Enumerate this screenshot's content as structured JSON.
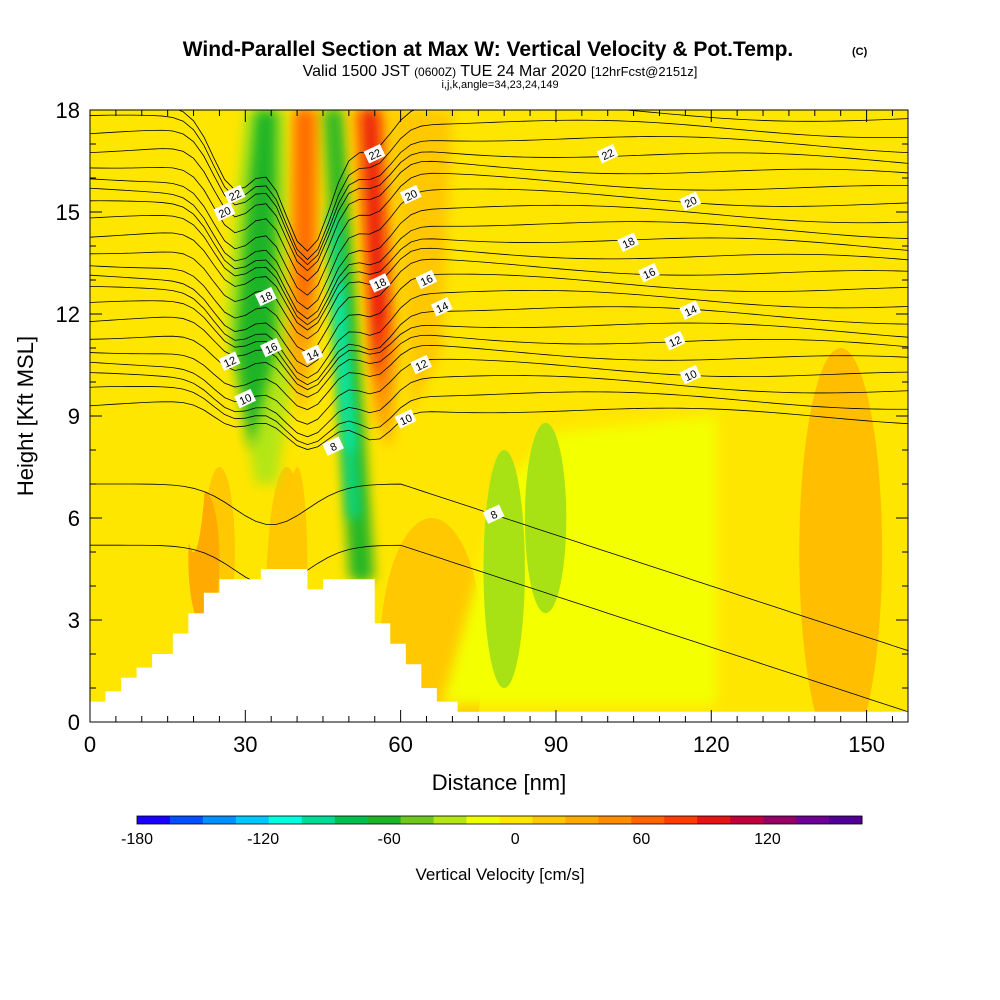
{
  "title": "Wind-Parallel Section at Max W: Vertical Velocity & Pot.Temp.",
  "title_mark": "(C)",
  "subtitle": {
    "valid_prefix": "Valid 1500 JST",
    "valid_utc": "(0600Z)",
    "valid_date": "TUE 24 Mar 2020",
    "forecast": "[12hrFcst@2151z]"
  },
  "indices": "i,j,k,angle=34,23,24,149",
  "chart_data": {
    "type": "heatmap",
    "xlabel": "Distance [nm]",
    "ylabel": "Height [Kft MSL]",
    "xlim": [
      0,
      158
    ],
    "ylim": [
      0,
      18
    ],
    "x_ticks": [
      0,
      30,
      60,
      90,
      120,
      150
    ],
    "y_ticks": [
      0,
      3,
      6,
      9,
      12,
      15,
      18
    ],
    "colorbar": {
      "label": "Vertical Velocity [cm/s]",
      "range": [
        -180,
        150
      ],
      "step": 15,
      "tick_values": [
        -180,
        -120,
        -60,
        0,
        60,
        120
      ],
      "colors": [
        "#1a00ff",
        "#0050ff",
        "#0090ff",
        "#00c8ff",
        "#00ffe0",
        "#00dc96",
        "#00c050",
        "#1eb428",
        "#6ec81e",
        "#b4e614",
        "#f0ff00",
        "#ffe600",
        "#ffc800",
        "#ffaa00",
        "#ff8c00",
        "#ff6400",
        "#ff3c00",
        "#e61414",
        "#c0003c",
        "#960064",
        "#6e0096",
        "#500096"
      ]
    },
    "theta_contour_labels": [
      {
        "value": 22,
        "x": 28,
        "y": 15.5
      },
      {
        "value": 20,
        "x": 26,
        "y": 15.0
      },
      {
        "value": 18,
        "x": 34,
        "y": 12.5
      },
      {
        "value": 16,
        "x": 35,
        "y": 11.0
      },
      {
        "value": 14,
        "x": 43,
        "y": 10.8
      },
      {
        "value": 12,
        "x": 27,
        "y": 10.6
      },
      {
        "value": 10,
        "x": 30,
        "y": 9.5
      },
      {
        "value": 8,
        "x": 47,
        "y": 8.1
      },
      {
        "value": 22,
        "x": 55,
        "y": 16.7
      },
      {
        "value": 20,
        "x": 62,
        "y": 15.5
      },
      {
        "value": 18,
        "x": 56,
        "y": 12.9
      },
      {
        "value": 16,
        "x": 65,
        "y": 13.0
      },
      {
        "value": 14,
        "x": 68,
        "y": 12.2
      },
      {
        "value": 12,
        "x": 64,
        "y": 10.5
      },
      {
        "value": 10,
        "x": 61,
        "y": 8.9
      },
      {
        "value": 8,
        "x": 78,
        "y": 6.1
      },
      {
        "value": 22,
        "x": 100,
        "y": 16.7
      },
      {
        "value": 20,
        "x": 116,
        "y": 15.3
      },
      {
        "value": 18,
        "x": 104,
        "y": 14.1
      },
      {
        "value": 16,
        "x": 108,
        "y": 13.2
      },
      {
        "value": 14,
        "x": 116,
        "y": 12.1
      },
      {
        "value": 12,
        "x": 113,
        "y": 11.2
      },
      {
        "value": 10,
        "x": 116,
        "y": 10.2
      }
    ],
    "terrain_profile_kft": [
      {
        "x": 0,
        "h": 0.6
      },
      {
        "x": 3,
        "h": 0.9
      },
      {
        "x": 6,
        "h": 1.3
      },
      {
        "x": 9,
        "h": 1.6
      },
      {
        "x": 12,
        "h": 2.0
      },
      {
        "x": 16,
        "h": 2.6
      },
      {
        "x": 19,
        "h": 3.2
      },
      {
        "x": 22,
        "h": 3.8
      },
      {
        "x": 25,
        "h": 4.2
      },
      {
        "x": 33,
        "h": 4.5
      },
      {
        "x": 42,
        "h": 3.9
      },
      {
        "x": 45,
        "h": 4.2
      },
      {
        "x": 55,
        "h": 2.9
      },
      {
        "x": 58,
        "h": 2.3
      },
      {
        "x": 61,
        "h": 1.7
      },
      {
        "x": 64,
        "h": 1.0
      },
      {
        "x": 67,
        "h": 0.6
      },
      {
        "x": 71,
        "h": 0.3
      },
      {
        "x": 158,
        "h": 0.3
      }
    ]
  }
}
